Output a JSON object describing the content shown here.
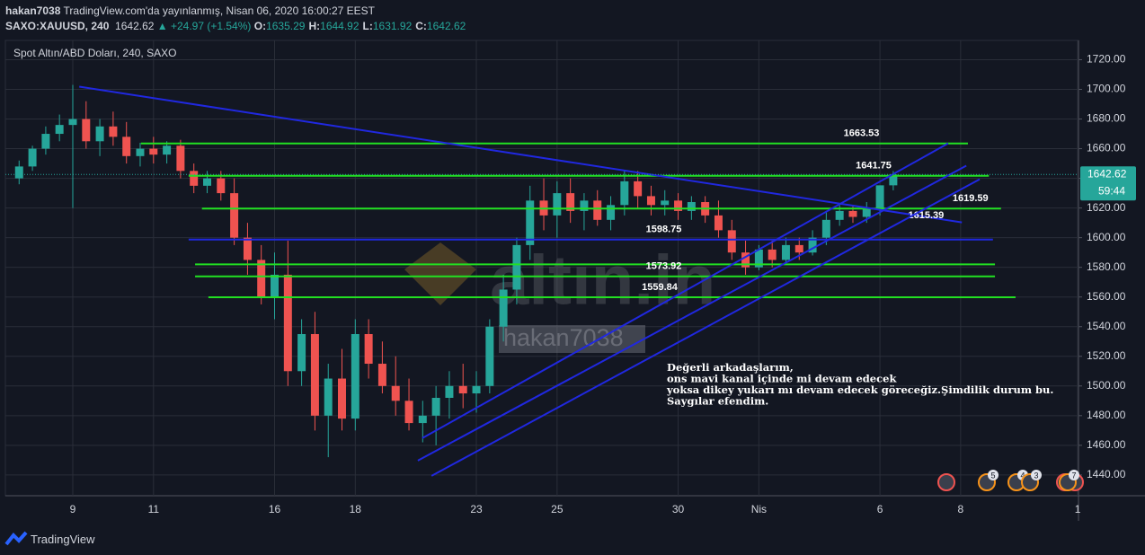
{
  "header": {
    "author": "hakan7038",
    "published": "TradingView.com'da yayınlanmış, Nisan 06, 2020 16:00:27 EEST",
    "symbol": "SAXO:XAUUSD, 240",
    "price": "1642.62",
    "change": "▲ +24.97 (+1.54%)",
    "ohlc": [
      {
        "key": "O:",
        "val": "1635.29"
      },
      {
        "key": "H:",
        "val": "1644.92"
      },
      {
        "key": "L:",
        "val": "1631.92"
      },
      {
        "key": "C:",
        "val": "1642.62"
      }
    ]
  },
  "watermark": {
    "logo": "altın.in",
    "user": "hakan7038"
  },
  "footer": {
    "brand": "TradingView"
  },
  "chart_data": {
    "type": "candlestick",
    "title": "Spot Altın/ABD Doları, 240, SAXO",
    "up_color": "#26a69a",
    "down_color": "#ef5350",
    "grid": true,
    "x": [
      -1.33,
      -1,
      -0.67,
      -0.33,
      0,
      0.33,
      0.67,
      1,
      1.33,
      1.67,
      2,
      2.33,
      2.67,
      3,
      3.33,
      3.67,
      4,
      4.33,
      4.67,
      5,
      5.33,
      5.67,
      6,
      6.33,
      6.67,
      7,
      7.33,
      7.67,
      8,
      8.33,
      8.67,
      9,
      9.33,
      9.67,
      10,
      10.33,
      10.67,
      11,
      11.33,
      11.67,
      12,
      12.33,
      12.67,
      13,
      13.33,
      13.67,
      14,
      14.33,
      14.67,
      15,
      15.33,
      15.67,
      16,
      16.33,
      16.67,
      17,
      17.33,
      17.67,
      18,
      18.33,
      18.67,
      19,
      19.33,
      19.67,
      20,
      20.33
    ],
    "open": [
      1640,
      1648,
      1660,
      1670,
      1676,
      1680,
      1665,
      1675,
      1668,
      1655,
      1660,
      1656,
      1662,
      1645,
      1635,
      1640,
      1630,
      1600,
      1585,
      1560,
      1575,
      1510,
      1535,
      1480,
      1505,
      1478,
      1535,
      1515,
      1500,
      1490,
      1475,
      1480,
      1492,
      1500,
      1495,
      1500,
      1540,
      1565,
      1595,
      1625,
      1615,
      1630,
      1618,
      1625,
      1612,
      1622,
      1638,
      1628,
      1622,
      1625,
      1618,
      1624,
      1615,
      1605,
      1590,
      1580,
      1592,
      1585,
      1595,
      1590,
      1600,
      1612,
      1618,
      1614,
      1620,
      1635.29
    ],
    "high": [
      1652,
      1662,
      1675,
      1683,
      1703,
      1692,
      1680,
      1685,
      1678,
      1664,
      1668,
      1665,
      1666,
      1650,
      1645,
      1645,
      1640,
      1610,
      1595,
      1590,
      1598,
      1545,
      1550,
      1515,
      1525,
      1545,
      1545,
      1530,
      1520,
      1505,
      1490,
      1500,
      1510,
      1515,
      1510,
      1545,
      1575,
      1600,
      1635,
      1640,
      1638,
      1640,
      1630,
      1632,
      1628,
      1645,
      1645,
      1635,
      1632,
      1630,
      1628,
      1628,
      1625,
      1612,
      1598,
      1595,
      1598,
      1600,
      1600,
      1605,
      1618,
      1622,
      1622,
      1624,
      1635,
      1644.92
    ],
    "low": [
      1636,
      1645,
      1656,
      1665,
      1620,
      1660,
      1655,
      1662,
      1650,
      1648,
      1650,
      1650,
      1640,
      1630,
      1630,
      1625,
      1595,
      1575,
      1555,
      1545,
      1500,
      1500,
      1470,
      1452,
      1470,
      1470,
      1505,
      1495,
      1480,
      1470,
      1462,
      1460,
      1478,
      1485,
      1482,
      1495,
      1530,
      1555,
      1585,
      1605,
      1600,
      1610,
      1605,
      1608,
      1605,
      1615,
      1620,
      1615,
      1615,
      1612,
      1612,
      1610,
      1600,
      1585,
      1575,
      1578,
      1580,
      1582,
      1585,
      1588,
      1595,
      1608,
      1610,
      1610,
      1615,
      1631.92
    ],
    "close": [
      1648,
      1660,
      1670,
      1676,
      1680,
      1665,
      1675,
      1668,
      1655,
      1660,
      1656,
      1662,
      1645,
      1635,
      1640,
      1630,
      1600,
      1585,
      1560,
      1575,
      1510,
      1535,
      1480,
      1505,
      1478,
      1535,
      1515,
      1500,
      1490,
      1475,
      1480,
      1492,
      1500,
      1495,
      1500,
      1540,
      1565,
      1595,
      1625,
      1615,
      1630,
      1618,
      1625,
      1612,
      1622,
      1638,
      1628,
      1622,
      1625,
      1618,
      1624,
      1615,
      1605,
      1590,
      1580,
      1592,
      1585,
      1595,
      1590,
      1600,
      1612,
      1618,
      1614,
      1620,
      1635.29,
      1642.62
    ],
    "xlim": [
      -1.67,
      24.92
    ],
    "ylim": [
      1426,
      1733
    ],
    "xticks": [
      {
        "value": 0,
        "label": "9"
      },
      {
        "value": 2,
        "label": "11"
      },
      {
        "value": 5,
        "label": "16"
      },
      {
        "value": 7,
        "label": "18"
      },
      {
        "value": 10,
        "label": "23"
      },
      {
        "value": 12,
        "label": "25"
      },
      {
        "value": 15,
        "label": "30"
      },
      {
        "value": 17,
        "label": "Nis"
      },
      {
        "value": 20,
        "label": "6"
      },
      {
        "value": 22,
        "label": "8"
      },
      {
        "value": 24.9,
        "label": "1"
      }
    ],
    "yticks": [
      {
        "value": 1440,
        "label": "1440.00"
      },
      {
        "value": 1460,
        "label": "1460.00"
      },
      {
        "value": 1480,
        "label": "1480.00"
      },
      {
        "value": 1500,
        "label": "1500.00"
      },
      {
        "value": 1520,
        "label": "1520.00"
      },
      {
        "value": 1540,
        "label": "1540.00"
      },
      {
        "value": 1560,
        "label": "1560.00"
      },
      {
        "value": 1580,
        "label": "1580.00"
      },
      {
        "value": 1600,
        "label": "1600.00"
      },
      {
        "value": 1620,
        "label": "1620.00"
      },
      {
        "value": 1640,
        "label": "1640.00"
      },
      {
        "value": 1660,
        "label": "1660.00"
      },
      {
        "value": 1680,
        "label": "1680.00"
      },
      {
        "value": 1700,
        "label": "1700.00"
      },
      {
        "value": 1720,
        "label": "1720.00"
      }
    ],
    "hlines": [
      {
        "value": 1663.53,
        "color": "#22e022",
        "x": [
          1.69,
          22.18
        ],
        "label_x": 19.1
      },
      {
        "value": 1641.75,
        "color": "#22e022",
        "x": [
          2.87,
          22.7
        ],
        "label_x": 19.4
      },
      {
        "value": 1619.59,
        "color": "#22e022",
        "x": [
          3.2,
          23.0
        ],
        "label_x": 21.8
      },
      {
        "value": 1598.75,
        "color": "#2028e0",
        "x": [
          2.87,
          22.8
        ],
        "label_x": 14.2
      },
      {
        "value": 1582,
        "color": "#22e022",
        "x": [
          3.03,
          22.85
        ]
      },
      {
        "value": 1573.92,
        "color": "#22e022",
        "x": [
          3.03,
          22.85
        ],
        "label_x": 14.2
      },
      {
        "value": 1559.84,
        "color": "#22e022",
        "x": [
          3.36,
          23.36
        ],
        "label_x": 14.1
      }
    ],
    "trendlines": [
      {
        "color": "#2028e0",
        "x": [
          0.16,
          22.03
        ],
        "y": [
          1701.8,
          1610.3
        ],
        "label": 1615.39,
        "label_x": 20.7
      },
      {
        "color": "#2028e0",
        "x": [
          8.66,
          21.69
        ],
        "y": [
          1464.8,
          1663.6
        ]
      },
      {
        "color": "#2028e0",
        "x": [
          8.55,
          22.14
        ],
        "y": [
          1449.7,
          1648.5
        ]
      },
      {
        "color": "#2028e0",
        "x": [
          8.89,
          22.47
        ],
        "y": [
          1439.4,
          1639.4
        ]
      }
    ],
    "note": [
      "Değerli arkadaşlarım,",
      "ons mavi kanal içinde mi devam edecek",
      "yoksa dikey yukarı mı devam edecek göreceğiz.Şimdilik durum bu.",
      "Saygılar efendim."
    ],
    "last_price": "1642.62",
    "countdown": "59:44",
    "events": [
      "5",
      "4",
      "3",
      "7"
    ]
  }
}
